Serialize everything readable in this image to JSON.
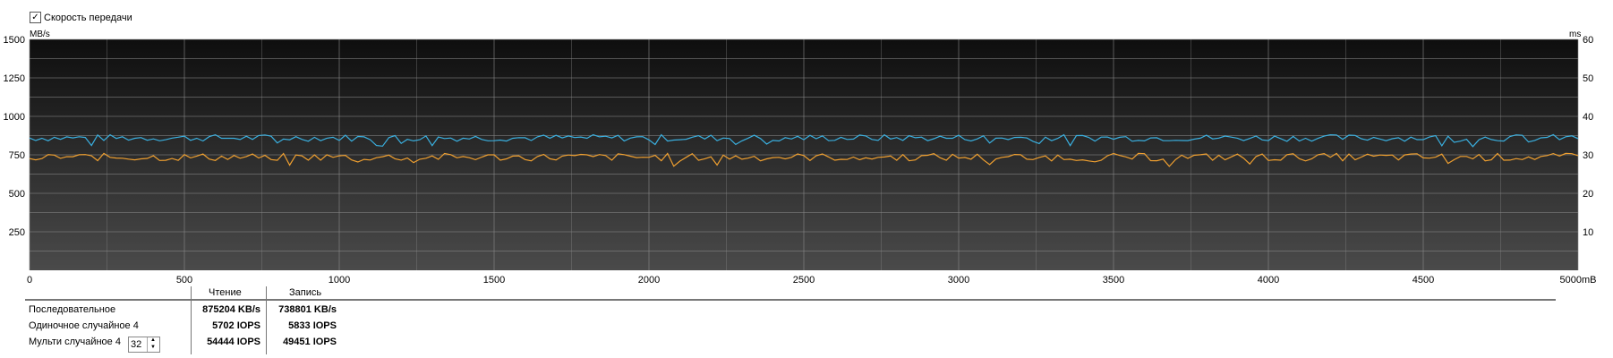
{
  "checkbox": {
    "label": "Скорость передачи",
    "checked": true,
    "mark": "✓"
  },
  "units": {
    "left": "MB/s",
    "right": "ms",
    "x": "mB"
  },
  "chart_data": {
    "type": "line",
    "y_left_ticks": [
      "1500",
      "1250",
      "1000",
      "750",
      "500",
      "250"
    ],
    "y_left_range": [
      0,
      1500
    ],
    "y_right_ticks": [
      "60",
      "50",
      "40",
      "30",
      "20",
      "10"
    ],
    "y_right_range": [
      0,
      60
    ],
    "x_ticks": [
      "0",
      "500",
      "1000",
      "1500",
      "2000",
      "2500",
      "3000",
      "3500",
      "4000",
      "4500",
      "5000"
    ],
    "x_range": [
      0,
      5000
    ],
    "grid": true,
    "background": {
      "top": "#0e0e0e",
      "bottom": "#4a4a4a"
    },
    "grid_color": "#8a8a8a",
    "series": [
      {
        "color": "#3ab0e0",
        "mean": 860,
        "noise": 22
      },
      {
        "color": "#f0a030",
        "mean": 735,
        "noise": 25
      }
    ]
  },
  "table": {
    "headers": {
      "read": "Чтение",
      "write": "Запись"
    },
    "rows": [
      {
        "label": "Последовательное",
        "read": "875204 KB/s",
        "write": "738801 KB/s"
      },
      {
        "label": "Одиночное случайное 4",
        "read": "5702 IOPS",
        "write": "5833 IOPS"
      },
      {
        "label": "Мульти случайное 4",
        "read": "54444 IOPS",
        "write": "49451 IOPS"
      }
    ],
    "queue_depth": "32"
  }
}
